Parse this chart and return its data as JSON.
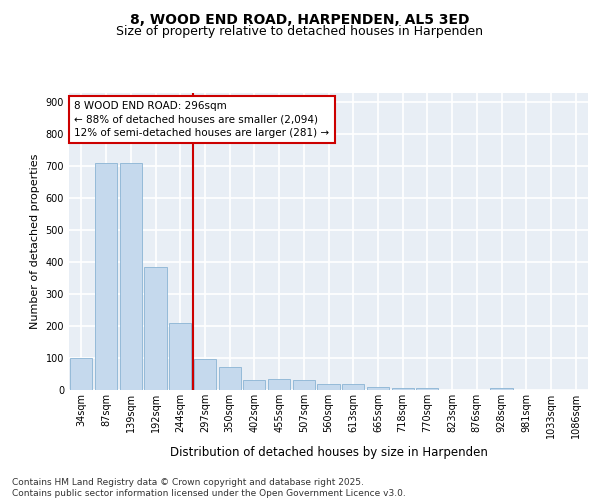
{
  "title_line1": "8, WOOD END ROAD, HARPENDEN, AL5 3ED",
  "title_line2": "Size of property relative to detached houses in Harpenden",
  "xlabel": "Distribution of detached houses by size in Harpenden",
  "ylabel": "Number of detached properties",
  "categories": [
    "34sqm",
    "87sqm",
    "139sqm",
    "192sqm",
    "244sqm",
    "297sqm",
    "350sqm",
    "402sqm",
    "455sqm",
    "507sqm",
    "560sqm",
    "613sqm",
    "665sqm",
    "718sqm",
    "770sqm",
    "823sqm",
    "876sqm",
    "928sqm",
    "981sqm",
    "1033sqm",
    "1086sqm"
  ],
  "values": [
    100,
    710,
    710,
    383,
    210,
    98,
    73,
    32,
    33,
    30,
    20,
    20,
    9,
    6,
    7,
    0,
    0,
    5,
    0,
    0,
    0
  ],
  "bar_color": "#c5d9ed",
  "bar_edge_color": "#8ab4d4",
  "vline_x_index": 5,
  "vline_color": "#cc0000",
  "annotation_text": "8 WOOD END ROAD: 296sqm\n← 88% of detached houses are smaller (2,094)\n12% of semi-detached houses are larger (281) →",
  "annotation_box_color": "#cc0000",
  "ylim": [
    0,
    930
  ],
  "yticks": [
    0,
    100,
    200,
    300,
    400,
    500,
    600,
    700,
    800,
    900
  ],
  "background_color": "#e8eef5",
  "grid_color": "#ffffff",
  "footer_text": "Contains HM Land Registry data © Crown copyright and database right 2025.\nContains public sector information licensed under the Open Government Licence v3.0.",
  "title_fontsize": 10,
  "subtitle_fontsize": 9,
  "ylabel_fontsize": 8,
  "xlabel_fontsize": 8.5,
  "tick_fontsize": 7,
  "annotation_fontsize": 7.5,
  "footer_fontsize": 6.5
}
